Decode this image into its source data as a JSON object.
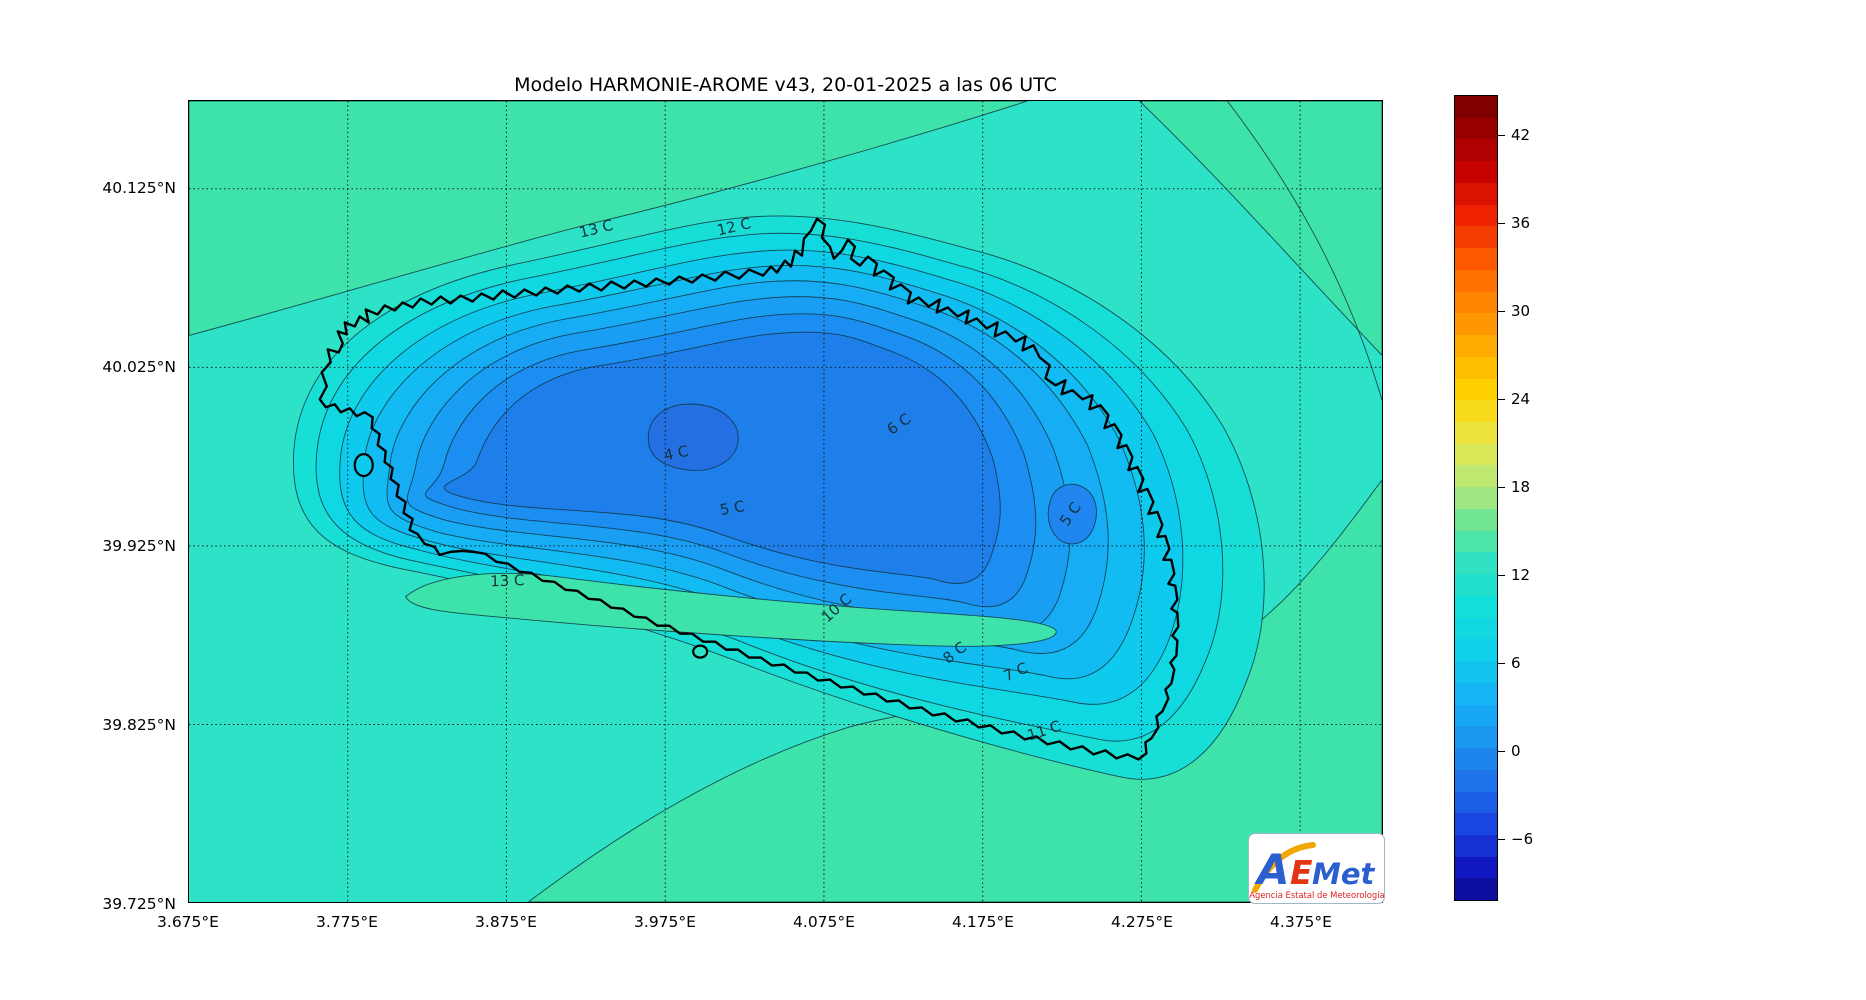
{
  "title": "Modelo HARMONIE-AROME v43, 20-01-2025 a las 06 UTC",
  "chart_data": {
    "type": "heatmap",
    "subtype": "filled-contour-temperature-map",
    "title": "Modelo HARMONIE-AROME v43, 20-01-2025 a las 06 UTC",
    "units": "C",
    "x_axis": {
      "label": "",
      "ticks": [
        "3.675°E",
        "3.775°E",
        "3.875°E",
        "3.975°E",
        "4.075°E",
        "4.175°E",
        "4.275°E",
        "4.375°E"
      ],
      "range_deg_east": [
        3.675,
        4.425
      ]
    },
    "y_axis": {
      "label": "",
      "ticks": [
        "40.125°N",
        "40.025°N",
        "39.925°N",
        "39.825°N",
        "39.725°N"
      ],
      "range_deg_north": [
        39.725,
        40.175
      ]
    },
    "grid": "dotted",
    "legend_position": "right-colorbar",
    "colorbar": {
      "vmin": -10.2,
      "vmax": 44.7,
      "ticks": [
        {
          "value": 42,
          "label": "42"
        },
        {
          "value": 36,
          "label": "36"
        },
        {
          "value": 30,
          "label": "30"
        },
        {
          "value": 24,
          "label": "24"
        },
        {
          "value": 18,
          "label": "18"
        },
        {
          "value": 12,
          "label": "12"
        },
        {
          "value": 6,
          "label": "6"
        },
        {
          "value": 0,
          "label": "0"
        },
        {
          "value": -6,
          "label": "−6"
        }
      ],
      "bands": 37,
      "stops_top_to_bottom": [
        {
          "p": 0.0,
          "c": "#730000"
        },
        {
          "p": 0.03,
          "c": "#8f0000"
        },
        {
          "p": 0.09,
          "c": "#c40000"
        },
        {
          "p": 0.15,
          "c": "#ef2200"
        },
        {
          "p": 0.22,
          "c": "#ff6a00"
        },
        {
          "p": 0.3,
          "c": "#ffa400"
        },
        {
          "p": 0.37,
          "c": "#ffd300"
        },
        {
          "p": 0.43,
          "c": "#e8e84a"
        },
        {
          "p": 0.49,
          "c": "#aee87d"
        },
        {
          "p": 0.545,
          "c": "#55e49e"
        },
        {
          "p": 0.585,
          "c": "#2de2c6"
        },
        {
          "p": 0.635,
          "c": "#12dfd8"
        },
        {
          "p": 0.69,
          "c": "#0fd0ea"
        },
        {
          "p": 0.76,
          "c": "#16adf5"
        },
        {
          "p": 0.83,
          "c": "#1f82ec"
        },
        {
          "p": 0.9,
          "c": "#1b4ce4"
        },
        {
          "p": 0.96,
          "c": "#1218c0"
        },
        {
          "p": 1.0,
          "c": "#0a0a8f"
        }
      ]
    },
    "palette": {
      "sea_12_13": "#2de2c6",
      "warm_above_13": "#3ee3ab",
      "band_11_12": "#18dfd6",
      "band_10_11": "#0fd8e3",
      "band_9_10": "#0ecbed",
      "band_8_9": "#12bcf2",
      "band_7_8": "#16adf5",
      "band_6_7": "#199ef4",
      "band_5_6": "#1c8ef1",
      "band_4_5": "#1f7fea",
      "band_below_4": "#2470e2",
      "blob_5c": "#1e86ee"
    },
    "contour_labels": [
      {
        "text": "13 C",
        "value": 13
      },
      {
        "text": "12 C",
        "value": 12
      },
      {
        "text": "4 C",
        "value": 4
      },
      {
        "text": "6 C",
        "value": 6
      },
      {
        "text": "5 C",
        "value": 5
      },
      {
        "text": "13 C",
        "value": 13
      },
      {
        "text": "10 C",
        "value": 10
      },
      {
        "text": "8 C",
        "value": 8
      },
      {
        "text": "7 C",
        "value": 7
      },
      {
        "text": "11 C",
        "value": 11
      },
      {
        "text": "5 C",
        "value": 5
      }
    ]
  },
  "logo": {
    "a": "A",
    "e": "E",
    "met": "Met",
    "subtitle": "Agencia Estatal de Meteorología"
  }
}
